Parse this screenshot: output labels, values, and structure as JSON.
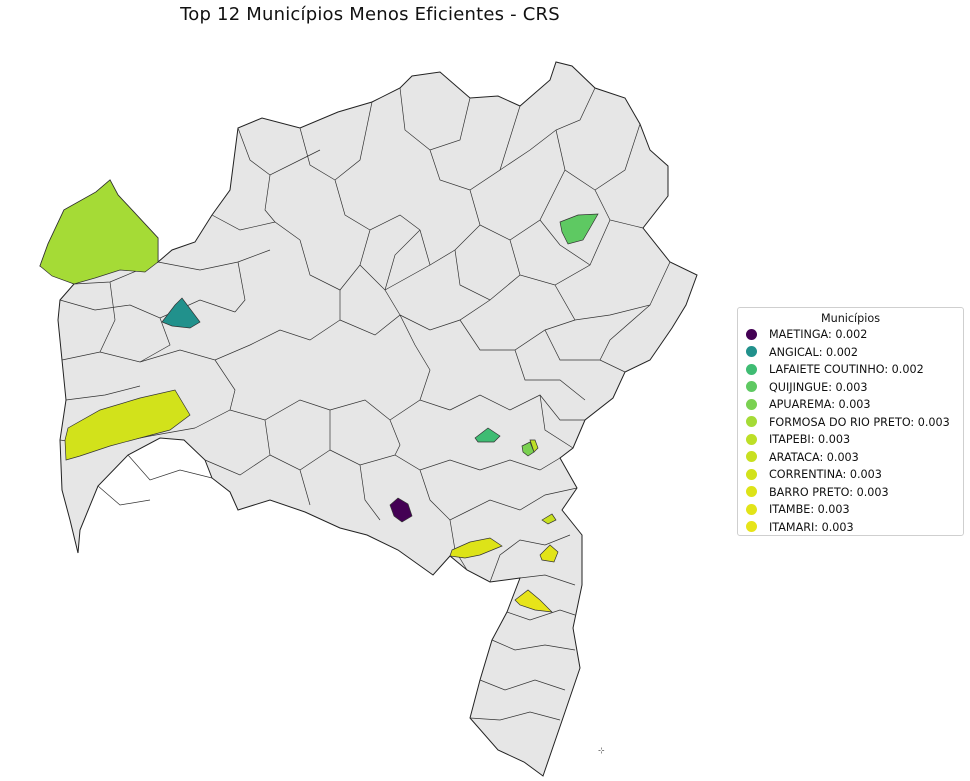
{
  "title": "Top 12 Municípios Menos Eficientes - CRS",
  "legend": {
    "title": "Municípios",
    "items": [
      {
        "label": "MAETINGA: 0.002",
        "name": "MAETINGA",
        "value": 0.002,
        "color": "#440154"
      },
      {
        "label": "ANGICAL: 0.002",
        "name": "ANGICAL",
        "value": 0.002,
        "color": "#21918c"
      },
      {
        "label": "LAFAIETE COUTINHO: 0.002",
        "name": "LAFAIETE COUTINHO",
        "value": 0.002,
        "color": "#3fbc73"
      },
      {
        "label": "QUIJINGUE: 0.003",
        "name": "QUIJINGUE",
        "value": 0.003,
        "color": "#5ec962"
      },
      {
        "label": "APUAREMA: 0.003",
        "name": "APUAREMA",
        "value": 0.003,
        "color": "#7ad151"
      },
      {
        "label": "FORMOSA DO RIO PRETO: 0.003",
        "name": "FORMOSA DO RIO PRETO",
        "value": 0.003,
        "color": "#a5db36"
      },
      {
        "label": "ITAPEBI: 0.003",
        "name": "ITAPEBI",
        "value": 0.003,
        "color": "#bddf26"
      },
      {
        "label": "ARATACA: 0.003",
        "name": "ARATACA",
        "value": 0.003,
        "color": "#c8e020"
      },
      {
        "label": "CORRENTINA: 0.003",
        "name": "CORRENTINA",
        "value": 0.003,
        "color": "#d2e21b"
      },
      {
        "label": "BARRO PRETO: 0.003",
        "name": "BARRO PRETO",
        "value": 0.003,
        "color": "#dde318"
      },
      {
        "label": "ITAMBE: 0.003",
        "name": "ITAMBE",
        "value": 0.003,
        "color": "#e2e418"
      },
      {
        "label": "ITAMARI: 0.003",
        "name": "ITAMARI",
        "value": 0.003,
        "color": "#e7e419"
      }
    ]
  },
  "map": {
    "base_fill": "#e6e6e6",
    "border_color": "#333333",
    "highlight_colors": {
      "MAETINGA": "#440154",
      "ANGICAL": "#21918c",
      "LAFAIETE COUTINHO": "#3fbc73",
      "QUIJINGUE": "#5ec962",
      "APUAREMA": "#7ad151",
      "FORMOSA DO RIO PRETO": "#a5db36",
      "ITAPEBI": "#bddf26",
      "ARATACA": "#c8e020",
      "CORRENTINA": "#d2e21b",
      "BARRO PRETO": "#dde318",
      "ITAMBE": "#e2e418",
      "ITAMARI": "#e7e419"
    },
    "corner_mark": "⊹"
  }
}
